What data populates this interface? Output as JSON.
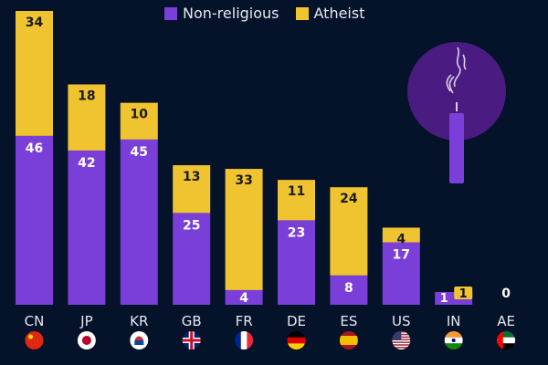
{
  "chart_data": {
    "type": "bar",
    "stacked": true,
    "title": "",
    "xlabel": "",
    "ylabel": "",
    "ylim": [
      0,
      80
    ],
    "grid": false,
    "legend_position": "top-center",
    "categories": [
      "CN",
      "JP",
      "KR",
      "GB",
      "FR",
      "DE",
      "ES",
      "US",
      "IN",
      "AE"
    ],
    "series": [
      {
        "name": "Non-religious",
        "color": "#7b3fd9",
        "values": [
          46,
          42,
          45,
          25,
          4,
          23,
          8,
          17,
          1,
          0
        ]
      },
      {
        "name": "Atheist",
        "color": "#f0c330",
        "values": [
          34,
          18,
          10,
          13,
          33,
          11,
          24,
          4,
          1,
          0
        ]
      }
    ],
    "total_labels": {
      "AE": "0"
    },
    "flags": [
      "china-flag",
      "japan-flag",
      "south-korea-flag",
      "uk-flag",
      "france-flag",
      "germany-flag",
      "spain-flag",
      "usa-flag",
      "india-flag",
      "uae-flag"
    ]
  },
  "legend": {
    "items": [
      {
        "label": "Non-religious",
        "color": "#7b3fd9"
      },
      {
        "label": "Atheist",
        "color": "#f0c330"
      }
    ]
  },
  "illustration": {
    "name": "extinguished-candle-icon",
    "circle_color": "#4a1c82",
    "candle_color": "#7b3fd9"
  }
}
